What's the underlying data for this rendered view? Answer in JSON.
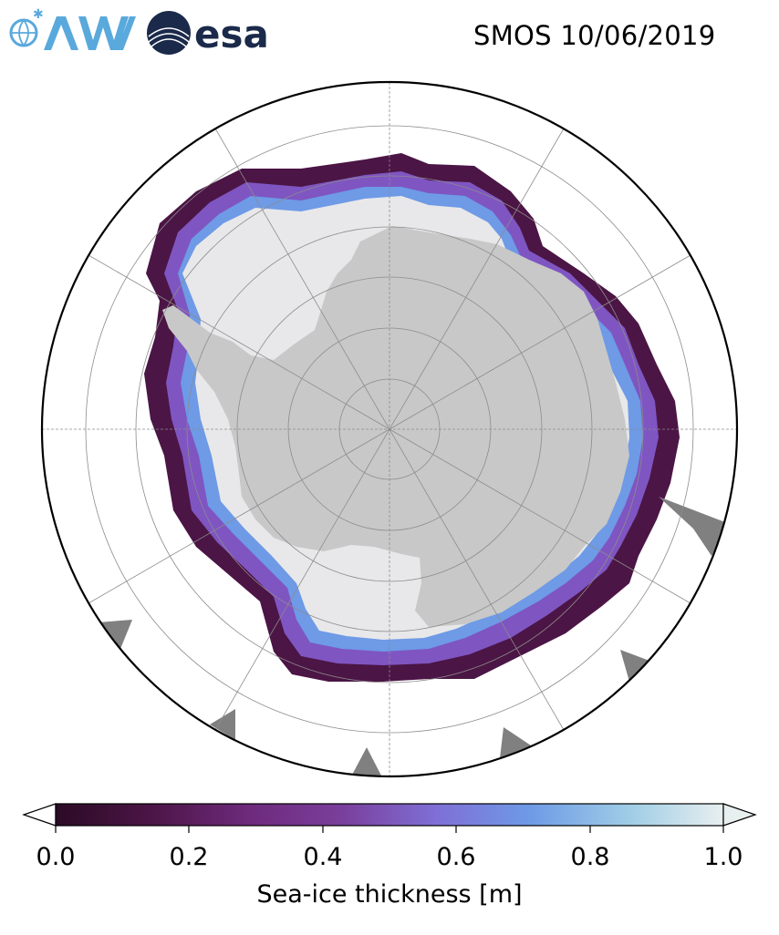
{
  "header": {
    "logos": [
      {
        "name": "AWI",
        "color": "#5aa9dc"
      },
      {
        "name": "esa",
        "color": "#1b2a4a"
      }
    ],
    "title": "SMOS 10/06/2019"
  },
  "map": {
    "projection": "south-polar-stereographic",
    "colors": {
      "land": "#c8c8c8",
      "landmask_dark": "#808080",
      "ocean": "#ffffff",
      "thick_ice": "#e8e8ea",
      "outline": "#000000",
      "graticule": "#8c8c8c"
    }
  },
  "colorbar": {
    "ticks": [
      "0.0",
      "0.2",
      "0.4",
      "0.6",
      "0.8",
      "1.0"
    ],
    "tick_values": [
      0.0,
      0.2,
      0.4,
      0.6,
      0.8,
      1.0
    ],
    "label": "Sea-ice thickness [m]",
    "range": [
      0.0,
      1.0
    ],
    "extend": "both",
    "colormap": [
      "#2b0b25",
      "#4b1545",
      "#6e2a7c",
      "#7f55c2",
      "#6e9ae6",
      "#8fc3e6",
      "#cde4e6",
      "#e8efef"
    ]
  }
}
